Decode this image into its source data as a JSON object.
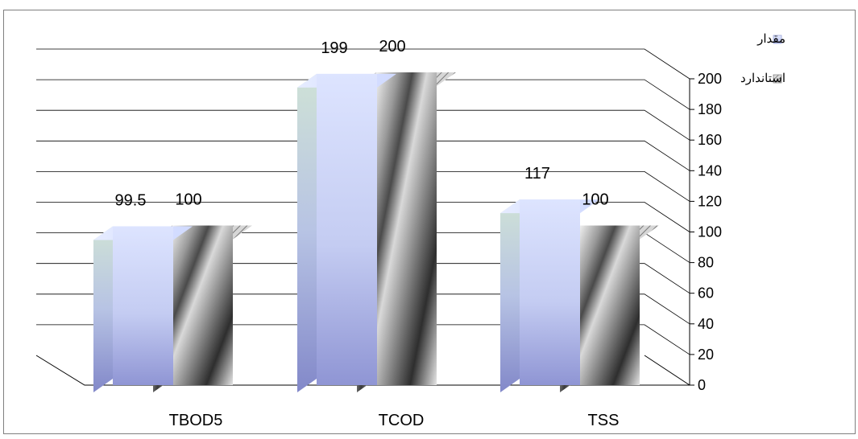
{
  "chart_data": {
    "type": "bar",
    "categories": [
      "TBOD5",
      "TCOD",
      "TSS"
    ],
    "series": [
      {
        "name": "مقدار",
        "values": [
          99.5,
          199,
          117
        ],
        "data_labels": [
          "99.5",
          "199",
          "117"
        ],
        "color": "#c7d2ff"
      },
      {
        "name": "استاندارد",
        "values": [
          100,
          200,
          100
        ],
        "data_labels": [
          "100",
          "200",
          "100"
        ],
        "color": "#a8a8a8"
      }
    ],
    "ylim": [
      0,
      200
    ],
    "yticks": [
      0,
      20,
      40,
      60,
      80,
      100,
      120,
      140,
      160,
      180,
      200
    ],
    "ytick_labels": [
      "0",
      "20",
      "40",
      "60",
      "80",
      "100",
      "120",
      "140",
      "160",
      "180",
      "200"
    ],
    "y_axis_side": "right",
    "grid": true,
    "legend_position": "top-right",
    "style": "3d-clustered-column"
  }
}
